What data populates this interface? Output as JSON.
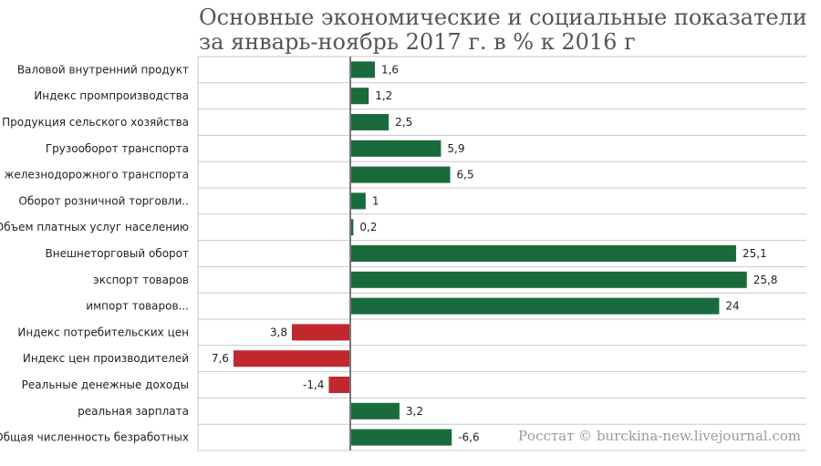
{
  "chart_data": {
    "type": "bar",
    "orientation": "horizontal",
    "title": "Основные экономические и социальные показатели",
    "subtitle": "за январь-ноябрь 2017 г. в % к 2016 г",
    "categories": [
      "Валовой внутренний продукт",
      "Индекс промпроизводства",
      "Продукция сельского хозяйства",
      "Грузооборот транспорта",
      "железнодорожного транспорта",
      "Оборот розничной торговли..",
      "Объем платных услуг населению",
      "Внешнеторговый оборот",
      "экспорт товаров",
      "импорт товаров...",
      "Индекс потребительских цен",
      "Индекс цен производителей",
      "Реальные денежные доходы",
      "реальная зарплата",
      "Общая численность безработных"
    ],
    "values": [
      1.6,
      1.2,
      2.5,
      5.9,
      6.5,
      1,
      0.2,
      25.1,
      25.8,
      24,
      -3.8,
      -7.6,
      -1.4,
      3.2,
      6.6
    ],
    "value_labels": [
      "1,6",
      "1,2",
      "2,5",
      "5,9",
      "6,5",
      "1",
      "0,2",
      "25,1",
      "25,8",
      "24",
      "3,8",
      "7,6",
      "-1,4",
      "3,2",
      "-6,6"
    ],
    "colors": [
      "green",
      "green",
      "green",
      "green",
      "green",
      "green",
      "green",
      "green",
      "green",
      "green",
      "red",
      "red",
      "red",
      "green",
      "green"
    ],
    "xlim": [
      -10,
      30
    ],
    "grid": true,
    "legend": "none"
  },
  "colors": {
    "positive": "#1a6b3c",
    "negative": "#c0282d",
    "grid": "#c8c8c8",
    "zero_axis": "#777777",
    "row_band": "#ffffff"
  },
  "watermark": "Росстат © burckina-new.livejournal.com"
}
